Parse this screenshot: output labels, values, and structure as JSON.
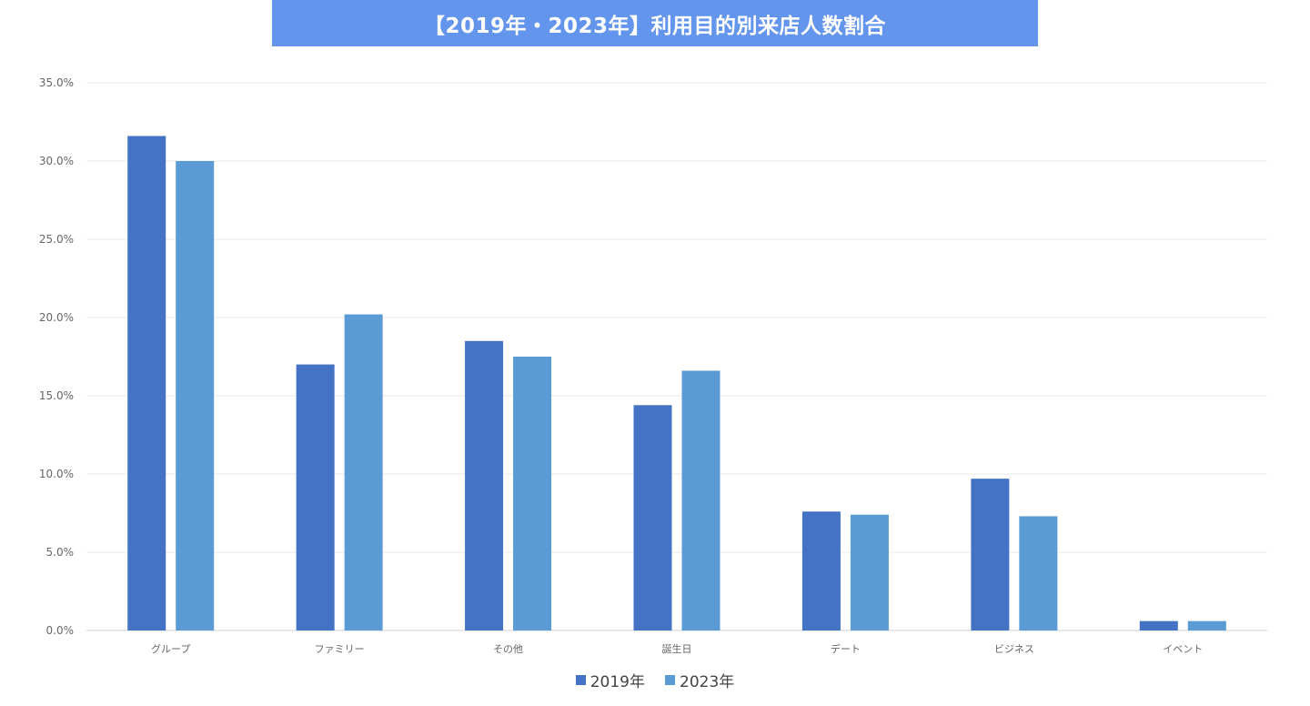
{
  "chart_data": {
    "type": "bar",
    "title": "【2019年・2023年】利用目的別来店人数割合",
    "categories": [
      "グループ",
      "ファミリー",
      "その他",
      "誕生日",
      "デート",
      "ビジネス",
      "イベント"
    ],
    "series": [
      {
        "name": "2019年",
        "values": [
          31.6,
          17.0,
          18.5,
          14.4,
          7.6,
          9.7,
          0.6
        ],
        "color": "#4472c4"
      },
      {
        "name": "2023年",
        "values": [
          30.0,
          20.2,
          17.5,
          16.6,
          7.4,
          7.3,
          0.6
        ],
        "color": "#5b9bd5"
      }
    ],
    "ylim": [
      0,
      35
    ],
    "yticks": [
      "0.0%",
      "5.0%",
      "10.0%",
      "15.0%",
      "20.0%",
      "25.0%",
      "30.0%",
      "35.0%"
    ],
    "grid": true,
    "legend_position": "bottom",
    "title_background": "#6495ed"
  }
}
